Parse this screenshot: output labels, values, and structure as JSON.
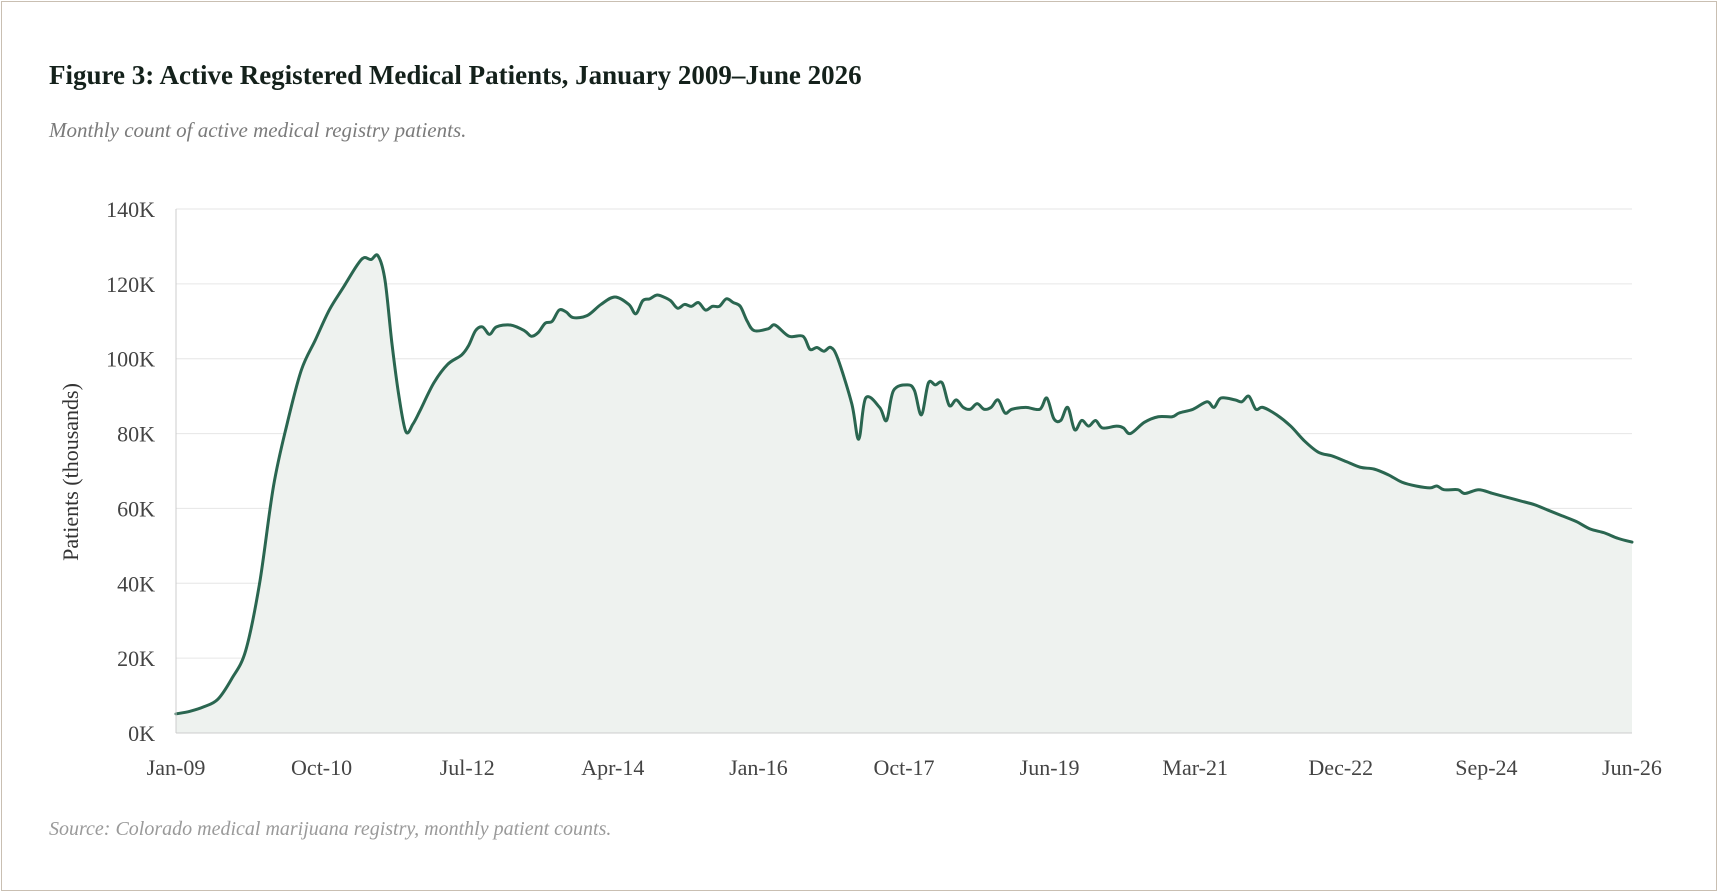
{
  "figure": {
    "title": "Figure 3: Active Registered Medical Patients, January 2009–June 2026",
    "subtitle": "Monthly count of active medical registry patients.",
    "source": "Source: Colorado medical marijuana registry, monthly patient counts."
  },
  "colors": {
    "line": "#2a6650",
    "area": "#eef2ef",
    "grid": "#e6e6e6",
    "axis": "#cccccc",
    "frame_border": "#c9bfb2"
  },
  "chart_data": {
    "type": "area",
    "title": "Figure 3: Active Registered Medical Patients, January 2009–June 2026",
    "subtitle": "Monthly count of active medical registry patients.",
    "xlabel": "",
    "ylabel": "Patients (thousands)",
    "x_start": "Jan-09",
    "x_end": "Jun-26",
    "x_ticks": [
      "Jan-09",
      "Oct-10",
      "Jul-12",
      "Apr-14",
      "Jan-16",
      "Oct-17",
      "Jun-19",
      "Mar-21",
      "Dec-22",
      "Sep-24",
      "Jun-26"
    ],
    "y_ticks": [
      "0K",
      "20K",
      "40K",
      "60K",
      "80K",
      "100K",
      "120K",
      "140K"
    ],
    "ylim": [
      0,
      140
    ],
    "grid": "horizontal",
    "legend": "none",
    "series": [
      {
        "points": [
          [
            "2009-01",
            5.1
          ],
          [
            "2009-03",
            5.8
          ],
          [
            "2009-05",
            7.0
          ],
          [
            "2009-07",
            9.0
          ],
          [
            "2009-09",
            14.5
          ],
          [
            "2009-11",
            22.0
          ],
          [
            "2010-01",
            40.0
          ],
          [
            "2010-03",
            66.0
          ],
          [
            "2010-05",
            83.0
          ],
          [
            "2010-07",
            97.0
          ],
          [
            "2010-09",
            105.0
          ],
          [
            "2010-11",
            113.0
          ],
          [
            "2011-01",
            119.0
          ],
          [
            "2011-03",
            125.0
          ],
          [
            "2011-04",
            127.0
          ],
          [
            "2011-05",
            126.5
          ],
          [
            "2011-06",
            127.5
          ],
          [
            "2011-07",
            121.0
          ],
          [
            "2011-08",
            104.0
          ],
          [
            "2011-09",
            90.0
          ],
          [
            "2011-10",
            80.5
          ],
          [
            "2011-11",
            82.5
          ],
          [
            "2011-12",
            86.0
          ],
          [
            "2012-02",
            93.5
          ],
          [
            "2012-04",
            98.5
          ],
          [
            "2012-06",
            101.0
          ],
          [
            "2012-07",
            103.5
          ],
          [
            "2012-08",
            107.5
          ],
          [
            "2012-09",
            108.5
          ],
          [
            "2012-10",
            106.5
          ],
          [
            "2012-11",
            108.5
          ],
          [
            "2013-01",
            109.0
          ],
          [
            "2013-03",
            107.5
          ],
          [
            "2013-04",
            106.0
          ],
          [
            "2013-05",
            107.0
          ],
          [
            "2013-06",
            109.5
          ],
          [
            "2013-07",
            110.0
          ],
          [
            "2013-08",
            113.0
          ],
          [
            "2013-09",
            112.5
          ],
          [
            "2013-10",
            111.0
          ],
          [
            "2013-12",
            111.5
          ],
          [
            "2014-02",
            114.5
          ],
          [
            "2014-04",
            116.5
          ],
          [
            "2014-06",
            114.5
          ],
          [
            "2014-07",
            112.0
          ],
          [
            "2014-08",
            115.5
          ],
          [
            "2014-09",
            116.0
          ],
          [
            "2014-10",
            117.0
          ],
          [
            "2014-11",
            116.5
          ],
          [
            "2014-12",
            115.5
          ],
          [
            "2015-01",
            113.5
          ],
          [
            "2015-02",
            114.5
          ],
          [
            "2015-03",
            114.0
          ],
          [
            "2015-04",
            115.0
          ],
          [
            "2015-05",
            113.0
          ],
          [
            "2015-06",
            114.0
          ],
          [
            "2015-07",
            114.0
          ],
          [
            "2015-08",
            116.0
          ],
          [
            "2015-09",
            115.0
          ],
          [
            "2015-10",
            114.0
          ],
          [
            "2015-11",
            110.0
          ],
          [
            "2015-12",
            107.5
          ],
          [
            "2016-02",
            108.0
          ],
          [
            "2016-03",
            109.0
          ],
          [
            "2016-05",
            106.0
          ],
          [
            "2016-07",
            106.0
          ],
          [
            "2016-08",
            102.5
          ],
          [
            "2016-09",
            103.0
          ],
          [
            "2016-10",
            102.0
          ],
          [
            "2016-11",
            103.0
          ],
          [
            "2016-12",
            100.0
          ],
          [
            "2017-02",
            88.0
          ],
          [
            "2017-03",
            78.5
          ],
          [
            "2017-04",
            89.5
          ],
          [
            "2017-06",
            87.0
          ],
          [
            "2017-07",
            83.5
          ],
          [
            "2017-08",
            91.5
          ],
          [
            "2017-10",
            93.0
          ],
          [
            "2017-11",
            91.5
          ],
          [
            "2017-12",
            85.0
          ],
          [
            "2018-01",
            93.5
          ],
          [
            "2018-02",
            93.0
          ],
          [
            "2018-03",
            93.5
          ],
          [
            "2018-04",
            87.5
          ],
          [
            "2018-05",
            89.0
          ],
          [
            "2018-06",
            87.0
          ],
          [
            "2018-07",
            86.5
          ],
          [
            "2018-08",
            88.0
          ],
          [
            "2018-09",
            86.5
          ],
          [
            "2018-10",
            87.0
          ],
          [
            "2018-11",
            89.0
          ],
          [
            "2018-12",
            85.5
          ],
          [
            "2019-01",
            86.5
          ],
          [
            "2019-03",
            87.0
          ],
          [
            "2019-05",
            86.5
          ],
          [
            "2019-06",
            89.5
          ],
          [
            "2019-07",
            84.0
          ],
          [
            "2019-08",
            83.5
          ],
          [
            "2019-09",
            87.0
          ],
          [
            "2019-10",
            81.0
          ],
          [
            "2019-11",
            83.5
          ],
          [
            "2019-12",
            82.0
          ],
          [
            "2020-01",
            83.5
          ],
          [
            "2020-02",
            81.5
          ],
          [
            "2020-04",
            82.0
          ],
          [
            "2020-05",
            81.5
          ],
          [
            "2020-06",
            80.0
          ],
          [
            "2020-08",
            83.0
          ],
          [
            "2020-10",
            84.5
          ],
          [
            "2020-12",
            84.5
          ],
          [
            "2021-01",
            85.5
          ],
          [
            "2021-03",
            86.5
          ],
          [
            "2021-05",
            88.5
          ],
          [
            "2021-06",
            87.0
          ],
          [
            "2021-07",
            89.5
          ],
          [
            "2021-09",
            89.0
          ],
          [
            "2021-10",
            88.5
          ],
          [
            "2021-11",
            90.0
          ],
          [
            "2021-12",
            86.5
          ],
          [
            "2022-01",
            87.0
          ],
          [
            "2022-03",
            85.0
          ],
          [
            "2022-05",
            82.0
          ],
          [
            "2022-07",
            78.0
          ],
          [
            "2022-09",
            75.0
          ],
          [
            "2022-11",
            74.0
          ],
          [
            "2023-01",
            72.5
          ],
          [
            "2023-03",
            71.0
          ],
          [
            "2023-05",
            70.5
          ],
          [
            "2023-07",
            69.0
          ],
          [
            "2023-09",
            67.0
          ],
          [
            "2023-11",
            66.0
          ],
          [
            "2024-01",
            65.5
          ],
          [
            "2024-02",
            66.0
          ],
          [
            "2024-03",
            65.0
          ],
          [
            "2024-05",
            65.0
          ],
          [
            "2024-06",
            64.0
          ],
          [
            "2024-08",
            65.0
          ],
          [
            "2024-10",
            64.0
          ],
          [
            "2024-12",
            63.0
          ],
          [
            "2025-02",
            62.0
          ],
          [
            "2025-04",
            61.0
          ],
          [
            "2025-06",
            59.5
          ],
          [
            "2025-08",
            58.0
          ],
          [
            "2025-10",
            56.5
          ],
          [
            "2025-12",
            54.5
          ],
          [
            "2026-02",
            53.5
          ],
          [
            "2026-04",
            52.0
          ],
          [
            "2026-06",
            51.0
          ]
        ]
      }
    ]
  }
}
